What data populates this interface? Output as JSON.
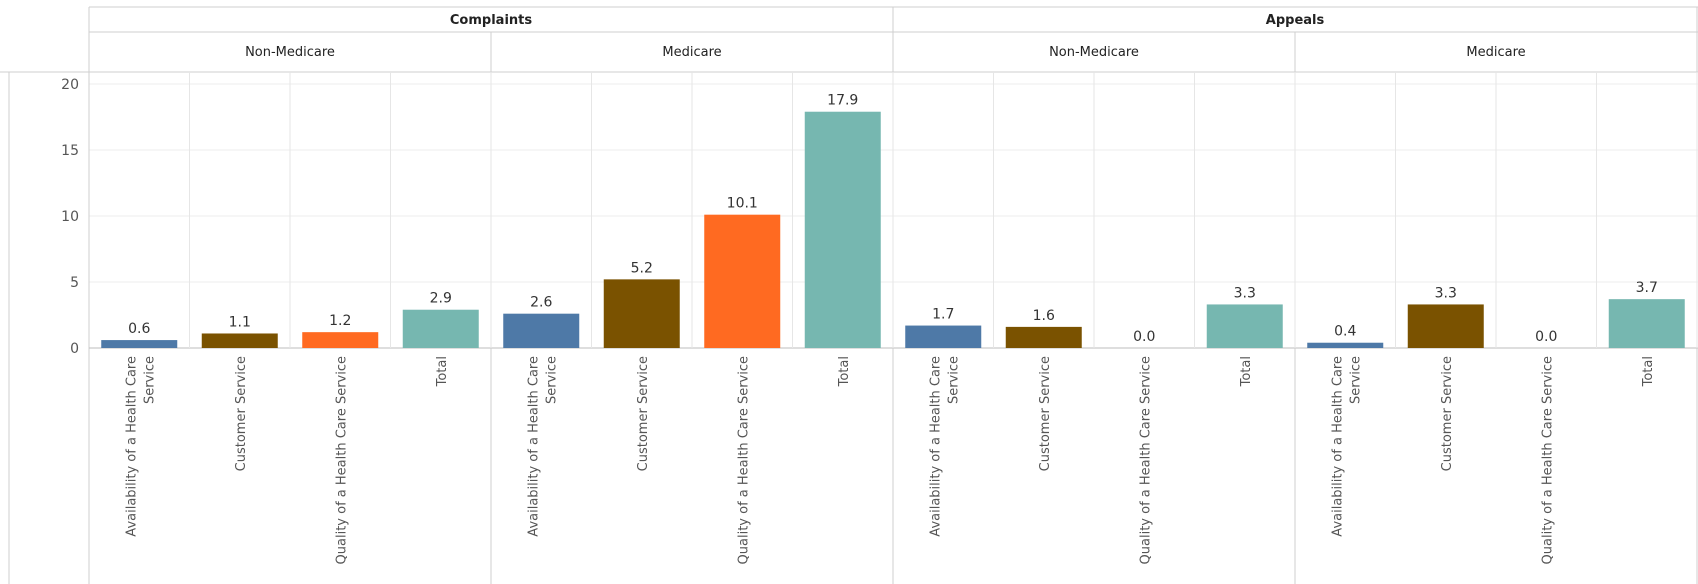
{
  "chart_data": {
    "type": "bar",
    "y_ticks": [
      "0",
      "5",
      "10",
      "15",
      "20"
    ],
    "ylim": [
      0,
      20
    ],
    "grid": true,
    "colors": {
      "Availability of a Health Care Service": "#4e79a7",
      "Customer Service": "#7a5200",
      "Quality of  a Health Care Service": "#ff6a21",
      "Total": "#76b7b0"
    },
    "groups": [
      {
        "name": "Complaints",
        "subgroups": [
          {
            "name": "Non-Medicare",
            "bars": [
              {
                "category": "Availability of a Health Care Service",
                "value": 0.6,
                "label": "0.6"
              },
              {
                "category": "Customer Service",
                "value": 1.1,
                "label": "1.1"
              },
              {
                "category": "Quality of  a Health Care Service",
                "value": 1.2,
                "label": "1.2"
              },
              {
                "category": "Total",
                "value": 2.9,
                "label": "2.9"
              }
            ]
          },
          {
            "name": "Medicare",
            "bars": [
              {
                "category": "Availability of a Health Care Service",
                "value": 2.6,
                "label": "2.6"
              },
              {
                "category": "Customer Service",
                "value": 5.2,
                "label": "5.2"
              },
              {
                "category": "Quality of  a Health Care Service",
                "value": 10.1,
                "label": "10.1"
              },
              {
                "category": "Total",
                "value": 17.9,
                "label": "17.9"
              }
            ]
          }
        ]
      },
      {
        "name": "Appeals",
        "subgroups": [
          {
            "name": "Non-Medicare",
            "bars": [
              {
                "category": "Availability of a Health Care Service",
                "value": 1.7,
                "label": "1.7"
              },
              {
                "category": "Customer Service",
                "value": 1.6,
                "label": "1.6"
              },
              {
                "category": "Quality of  a Health Care Service",
                "value": 0.0,
                "label": "0.0"
              },
              {
                "category": "Total",
                "value": 3.3,
                "label": "3.3"
              }
            ]
          },
          {
            "name": "Medicare",
            "bars": [
              {
                "category": "Availability of a Health Care Service",
                "value": 0.4,
                "label": "0.4"
              },
              {
                "category": "Customer Service",
                "value": 3.3,
                "label": "3.3"
              },
              {
                "category": "Quality of  a Health Care Service",
                "value": 0.0,
                "label": "0.0"
              },
              {
                "category": "Total",
                "value": 3.7,
                "label": "3.7"
              }
            ]
          }
        ]
      }
    ]
  }
}
